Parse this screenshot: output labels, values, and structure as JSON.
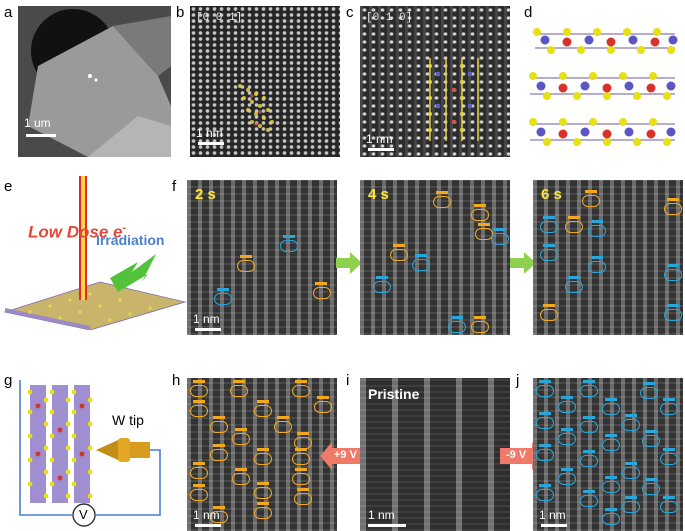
{
  "panels": {
    "a": {
      "label": "a",
      "scale": "1 um"
    },
    "b": {
      "label": "b",
      "zone": "[0 0 1]",
      "scale": "1 nm"
    },
    "c": {
      "label": "c",
      "zone": "[0 1 0]",
      "scale": "1 nm"
    },
    "d": {
      "label": "d"
    },
    "e": {
      "label": "e",
      "title_low": "Low Dose e",
      "title_minus": "-",
      "irradiation": "Irradiation"
    },
    "f": {
      "label": "f",
      "times": [
        "2 s",
        "4 s",
        "6 s"
      ],
      "scale": "1 nm"
    },
    "g": {
      "label": "g",
      "tip": "W tip",
      "meter": "V"
    },
    "h": {
      "label": "h",
      "scale": "1 nm",
      "bias": "+9 V"
    },
    "i": {
      "label": "i",
      "title": "Pristine",
      "scale": "1 nm"
    },
    "j": {
      "label": "j",
      "scale": "1 nm",
      "bias": "-9 V"
    }
  },
  "colors": {
    "orange": "#f2a81d",
    "blue": "#29a6d9",
    "yellow": "#ffe53a",
    "arrow_green": "#8fd14f",
    "arrow_red": "#f07a6a",
    "beam_red": "#e32a2a"
  }
}
